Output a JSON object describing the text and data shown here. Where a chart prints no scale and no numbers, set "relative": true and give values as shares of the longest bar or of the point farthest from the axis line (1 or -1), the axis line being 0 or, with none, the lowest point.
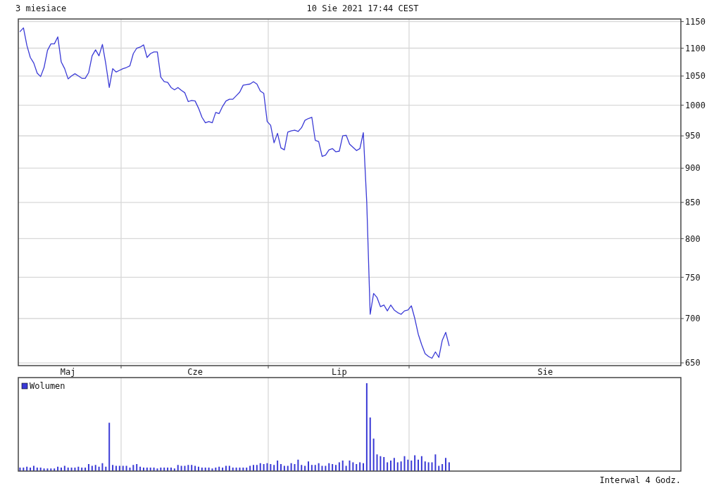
{
  "chart_data": [
    {
      "type": "line",
      "title": "3 miesiace",
      "subtitle": "10 Sie 2021 17:44 CEST",
      "log": "y",
      "grid": "y",
      "ylim": [
        647,
        1155
      ],
      "yticks": [
        650,
        700,
        750,
        800,
        850,
        900,
        950,
        1000,
        1050,
        1100,
        1150
      ],
      "categories": [
        null,
        null,
        null,
        null,
        null,
        null,
        null,
        null,
        null,
        null,
        null,
        null,
        null,
        null,
        "Maj",
        null,
        null,
        null,
        null,
        null,
        null,
        null,
        null,
        null,
        null,
        null,
        null,
        null,
        null,
        null,
        null,
        null,
        null,
        null,
        null,
        null,
        null,
        null,
        null,
        null,
        null,
        null,
        null,
        null,
        null,
        null,
        null,
        null,
        null,
        null,
        null,
        "Cze",
        null,
        null,
        null,
        null,
        null,
        null,
        null,
        null,
        null,
        null,
        null,
        null,
        null,
        null,
        null,
        null,
        null,
        null,
        null,
        null,
        null,
        null,
        null,
        null,
        null,
        null,
        null,
        null,
        null,
        null,
        null,
        null,
        null,
        null,
        null,
        null,
        null,
        null,
        null,
        null,
        null,
        "Lip",
        null,
        null,
        null,
        null,
        null,
        null,
        null,
        null,
        null,
        null,
        null,
        null,
        null,
        null,
        null,
        null,
        null,
        null,
        null,
        null,
        null,
        null,
        null,
        null,
        null,
        null,
        null,
        null,
        null,
        null,
        null,
        null,
        null,
        null,
        null,
        null,
        null,
        null,
        null,
        null,
        null,
        null,
        null,
        null,
        null,
        null,
        null,
        null,
        null,
        null,
        null,
        null,
        null,
        null,
        null,
        null,
        null,
        null,
        null,
        "Sie",
        null,
        null,
        null,
        null,
        null,
        null,
        null,
        null,
        null,
        null,
        null,
        null,
        null,
        null,
        null,
        null,
        null,
        null,
        null,
        null,
        null,
        null,
        null,
        null,
        null,
        null,
        null,
        null,
        null,
        null,
        null,
        null,
        null,
        null,
        null,
        null,
        null,
        null,
        null
      ],
      "series": [
        {
          "color": "#3a3ad6",
          "values": [
            1131,
            1138,
            1105,
            1083,
            1073,
            1055,
            1049,
            1065,
            1096,
            1108,
            1108,
            1121,
            1075,
            1063,
            1045,
            1050,
            1054,
            1050,
            1046,
            1046,
            1056,
            1086,
            1097,
            1086,
            1107,
            1071,
            1030,
            1063,
            1057,
            1060,
            1063,
            1065,
            1068,
            1090,
            1100,
            1102,
            1106,
            1083,
            1090,
            1093,
            1093,
            1048,
            1040,
            1039,
            1030,
            1026,
            1030,
            1025,
            1021,
            1006,
            1008,
            1007,
            995,
            980,
            971,
            973,
            971,
            988,
            986,
            998,
            1007,
            1010,
            1010,
            1016,
            1022,
            1034,
            1035,
            1036,
            1040,
            1036,
            1024,
            1020,
            973,
            967,
            939,
            954,
            931,
            928,
            956,
            958,
            959,
            957,
            963,
            975,
            978,
            980,
            943,
            941,
            918,
            920,
            928,
            930,
            925,
            926,
            950,
            951,
            937,
            932,
            927,
            930,
            955,
            850,
            705,
            730,
            725,
            714,
            716,
            709,
            716,
            710,
            707,
            705,
            709,
            710,
            715,
            700,
            682,
            670,
            660,
            657,
            655,
            662,
            656,
            675,
            684,
            669,
            null,
            null,
            null,
            null,
            null,
            null,
            null,
            null,
            null,
            null,
            null,
            null,
            null,
            null,
            null,
            null,
            null,
            null,
            null,
            null,
            null,
            null,
            null,
            null,
            null,
            null,
            null,
            null,
            null,
            null,
            null,
            null,
            null,
            null,
            null,
            null,
            null,
            null,
            null,
            null,
            null,
            null,
            null,
            null,
            null,
            null,
            null,
            null,
            null,
            null,
            null,
            null,
            null,
            null,
            null,
            null,
            null,
            null,
            null,
            null,
            null,
            null,
            null,
            null,
            null,
            null,
            null
          ]
        }
      ]
    },
    {
      "type": "bar",
      "relative": true,
      "legend": "top left",
      "categories": [
        null,
        null,
        null,
        null,
        null,
        null,
        null,
        null,
        null,
        null,
        null,
        null,
        null,
        null,
        null,
        null,
        null,
        null,
        null,
        null,
        null,
        null,
        null,
        null,
        null,
        null,
        null,
        null,
        null,
        null,
        null,
        null,
        null,
        null,
        null,
        null,
        null,
        null,
        null,
        null,
        null,
        null,
        null,
        null,
        null,
        null,
        null,
        null,
        null,
        null,
        null,
        null,
        null,
        null,
        null,
        null,
        null,
        null,
        null,
        null,
        null,
        null,
        null,
        null,
        null,
        null,
        null,
        null,
        null,
        null,
        null,
        null,
        null,
        null,
        null,
        null,
        null,
        null,
        null,
        null,
        null,
        null,
        null,
        null,
        null,
        null,
        null,
        null,
        null,
        null,
        null,
        null,
        null,
        null,
        null,
        null,
        null,
        null,
        null,
        null,
        null,
        null,
        null,
        null,
        null,
        null,
        null,
        null,
        null,
        null,
        null,
        null,
        null,
        null,
        null,
        null,
        null,
        null,
        null,
        null,
        null,
        null,
        null,
        null,
        null,
        null,
        null,
        null,
        null,
        null,
        null,
        null,
        null,
        null,
        null,
        null,
        null,
        null,
        null,
        null,
        null,
        null,
        null,
        null,
        null,
        null,
        null,
        null,
        null,
        null,
        null,
        null,
        null,
        null,
        null,
        null,
        null,
        null,
        null,
        null,
        null,
        null,
        null,
        null,
        null,
        null,
        null,
        null,
        null,
        null,
        null,
        null,
        null,
        null,
        null,
        null,
        null,
        null,
        null,
        null,
        null,
        null,
        null,
        null,
        null,
        null,
        null,
        null,
        null,
        null,
        null,
        null,
        null
      ],
      "annotations": [
        "Interwal 4 Godz."
      ],
      "series": [
        {
          "name": "Wolumen",
          "color": "#3a3ad6",
          "values": [
            0.04,
            0.04,
            0.05,
            0.04,
            0.06,
            0.04,
            0.04,
            0.03,
            0.03,
            0.03,
            0.03,
            0.05,
            0.04,
            0.06,
            0.04,
            0.04,
            0.04,
            0.05,
            0.04,
            0.04,
            0.08,
            0.06,
            0.07,
            0.05,
            0.09,
            0.05,
            0.55,
            0.07,
            0.06,
            0.06,
            0.06,
            0.06,
            0.04,
            0.07,
            0.08,
            0.05,
            0.04,
            0.04,
            0.04,
            0.04,
            0.03,
            0.04,
            0.04,
            0.04,
            0.04,
            0.03,
            0.07,
            0.06,
            0.06,
            0.07,
            0.07,
            0.06,
            0.05,
            0.04,
            0.04,
            0.04,
            0.03,
            0.04,
            0.05,
            0.04,
            0.06,
            0.06,
            0.04,
            0.04,
            0.04,
            0.04,
            0.04,
            0.06,
            0.07,
            0.07,
            0.09,
            0.08,
            0.09,
            0.08,
            0.07,
            0.12,
            0.08,
            0.06,
            0.06,
            0.09,
            0.08,
            0.13,
            0.07,
            0.06,
            0.11,
            0.07,
            0.07,
            0.09,
            0.06,
            0.06,
            0.09,
            0.08,
            0.07,
            0.1,
            0.12,
            0.06,
            0.12,
            0.1,
            0.08,
            0.1,
            0.09,
            1,
            0.61,
            0.37,
            0.19,
            0.17,
            0.16,
            0.1,
            0.12,
            0.15,
            0.1,
            0.11,
            0.17,
            0.13,
            0.12,
            0.18,
            0.13,
            0.17,
            0.11,
            0.1,
            0.1,
            0.19,
            0.06,
            0.08,
            0.15,
            0.1,
            null,
            null,
            null,
            null,
            null,
            null,
            null,
            null,
            null,
            null,
            null,
            null,
            null,
            null,
            null,
            null,
            null,
            null,
            null,
            null,
            null,
            null,
            null,
            null,
            null,
            null,
            null,
            null,
            null,
            null,
            null,
            null,
            null,
            null,
            null,
            null,
            null,
            null,
            null,
            null,
            null,
            null,
            null,
            null,
            null,
            null,
            null,
            null,
            null,
            null,
            null,
            null,
            null,
            null,
            null,
            null,
            null,
            null,
            null,
            null,
            null,
            null,
            null,
            null,
            null,
            null,
            null
          ]
        }
      ]
    }
  ]
}
